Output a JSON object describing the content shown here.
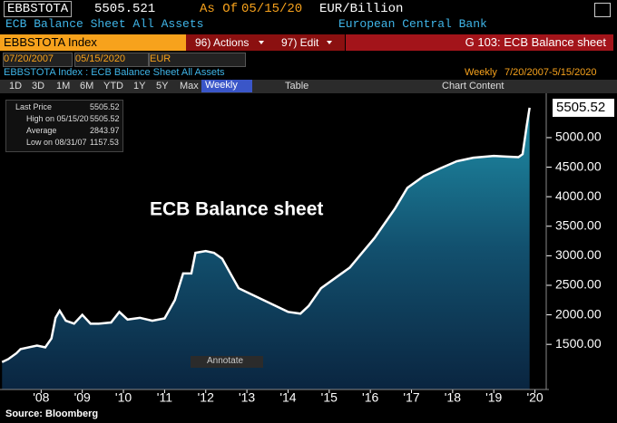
{
  "header": {
    "ticker": "EBBSTOTA",
    "price": 5505.521,
    "as_of_label": "As Of",
    "as_of_date": "05/15/20",
    "units": "EUR/Billion",
    "description": "ECB Balance Sheet All Assets",
    "issuer": "European Central Bank"
  },
  "toolbar": {
    "security": "EBBSTOTA Index",
    "actions": "96) Actions",
    "edit": "97) Edit",
    "chart_name": "G 103: ECB Balance sheet",
    "start_date": "07/20/2007",
    "end_date": "05/15/2020",
    "currency": "EUR",
    "chart_header": "EBBSTOTA Index : ECB Balance Sheet All Assets",
    "frequency": "Weekly",
    "range": "7/20/2007-5/15/2020",
    "periods": [
      "1D",
      "3D",
      "1M",
      "6M",
      "YTD",
      "1Y",
      "5Y",
      "Max"
    ],
    "frequency_button": "Weekly",
    "table": "Table",
    "chart_content": "Chart Content",
    "annotate": "Annotate"
  },
  "legend": {
    "rows": [
      {
        "label": "Last Price",
        "value": 5505.52
      },
      {
        "label": "High on 05/15/20",
        "value": 5505.52
      },
      {
        "label": "Average",
        "value": 2843.97
      },
      {
        "label": "Low on 08/31/07",
        "value": 1157.53
      }
    ]
  },
  "chart_data": {
    "type": "line",
    "title": "ECB Balance sheet",
    "color": "#ffffff",
    "last_price_label": "5505.52",
    "x": [
      2007.55,
      2007.7,
      2007.9,
      2008.0,
      2008.2,
      2008.4,
      2008.6,
      2008.75,
      2008.85,
      2008.95,
      2009.1,
      2009.3,
      2009.5,
      2009.7,
      2009.9,
      2010.2,
      2010.4,
      2010.6,
      2010.9,
      2011.2,
      2011.5,
      2011.75,
      2011.95,
      2012.15,
      2012.25,
      2012.5,
      2012.7,
      2012.9,
      2013.1,
      2013.3,
      2013.6,
      2013.9,
      2014.2,
      2014.5,
      2014.8,
      2015.0,
      2015.3,
      2015.7,
      2016.0,
      2016.3,
      2016.6,
      2016.9,
      2017.1,
      2017.4,
      2017.8,
      2018.2,
      2018.6,
      2019.0,
      2019.5,
      2019.8,
      2020.1,
      2020.2,
      2020.3,
      2020.37
    ],
    "values": [
      1200,
      1250,
      1350,
      1420,
      1450,
      1480,
      1450,
      1600,
      1950,
      2070,
      1900,
      1850,
      2000,
      1850,
      1850,
      1870,
      2050,
      1920,
      1950,
      1900,
      1940,
      2250,
      2700,
      2700,
      3050,
      3080,
      3050,
      2950,
      2700,
      2450,
      2350,
      2250,
      2150,
      2050,
      2020,
      2150,
      2450,
      2650,
      2800,
      3050,
      3300,
      3600,
      3800,
      4150,
      4350,
      4480,
      4600,
      4660,
      4690,
      4680,
      4670,
      4720,
      5200,
      5505.52
    ],
    "xlim": [
      2007.5,
      2020.73
    ],
    "xticks": [
      {
        "value": 2008.5,
        "label": "'08"
      },
      {
        "value": 2009.5,
        "label": "'09"
      },
      {
        "value": 2010.5,
        "label": "'10"
      },
      {
        "value": 2011.5,
        "label": "'11"
      },
      {
        "value": 2012.5,
        "label": "'12"
      },
      {
        "value": 2013.5,
        "label": "'13"
      },
      {
        "value": 2014.5,
        "label": "'14"
      },
      {
        "value": 2015.5,
        "label": "'15"
      },
      {
        "value": 2016.5,
        "label": "'16"
      },
      {
        "value": 2017.5,
        "label": "'17"
      },
      {
        "value": 2018.5,
        "label": "'18"
      },
      {
        "value": 2019.5,
        "label": "'19"
      },
      {
        "value": 2020.5,
        "label": "'20"
      }
    ],
    "ylim": [
      920,
      5720
    ],
    "yticks": [
      {
        "value": 1500,
        "label": "1500.00"
      },
      {
        "value": 2000,
        "label": "2000.00"
      },
      {
        "value": 2500,
        "label": "2500.00"
      },
      {
        "value": 3000,
        "label": "3000.00"
      },
      {
        "value": 3500,
        "label": "3500.00"
      },
      {
        "value": 4000,
        "label": "4000.00"
      },
      {
        "value": 4500,
        "label": "4500.00"
      },
      {
        "value": 5000,
        "label": "5000.00"
      }
    ]
  },
  "source": "Source: Bloomberg"
}
